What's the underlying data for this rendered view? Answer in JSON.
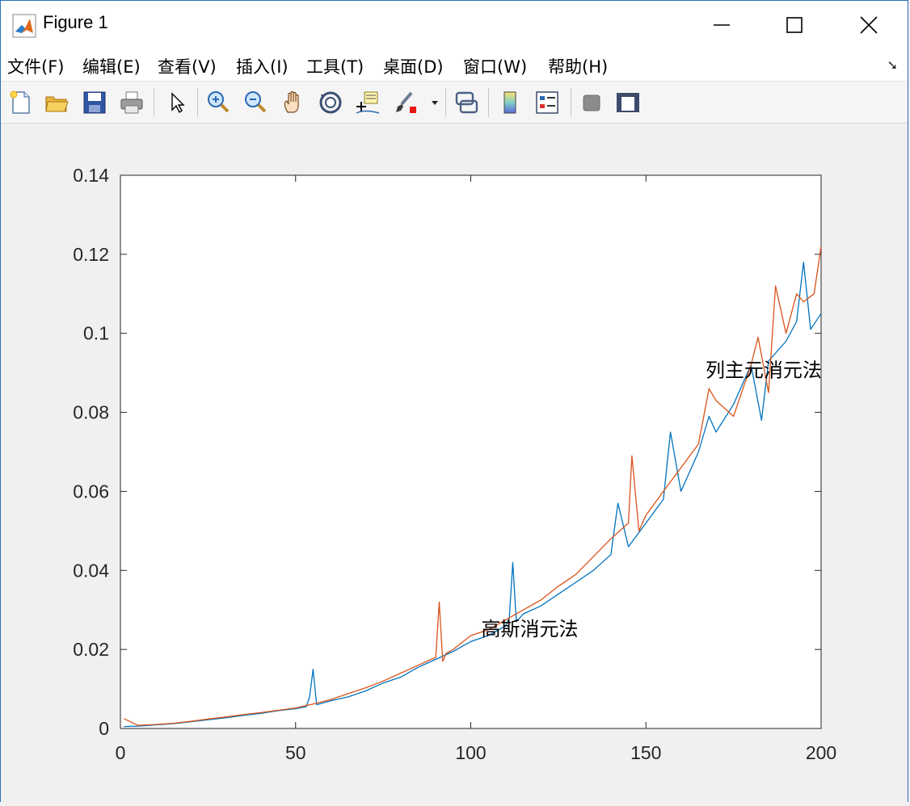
{
  "window": {
    "title": "Figure 1"
  },
  "menu": {
    "items": [
      "文件(F)",
      "编辑(E)",
      "查看(V)",
      "插入(I)",
      "工具(T)",
      "桌面(D)",
      "窗口(W)",
      "帮助(H)"
    ]
  },
  "toolbar": {
    "icons": [
      "new-figure-icon",
      "open-file-icon",
      "save-icon",
      "print-icon",
      "select-arrow-icon",
      "zoom-in-icon",
      "zoom-out-icon",
      "pan-hand-icon",
      "rotate-3d-icon",
      "data-cursor-icon",
      "brush-icon",
      "brush-dropdown-icon",
      "link-plot-icon",
      "colorbar-icon",
      "legend-icon",
      "hide-plot-tools-icon",
      "show-plot-tools-icon"
    ]
  },
  "chart_data": {
    "type": "line",
    "xlim": [
      0,
      200
    ],
    "ylim": [
      0,
      0.14
    ],
    "xticks": [
      0,
      50,
      100,
      150,
      200
    ],
    "yticks": [
      0,
      0.02,
      0.04,
      0.06,
      0.08,
      0.1,
      0.12,
      0.14
    ],
    "xtick_labels": [
      "0",
      "50",
      "100",
      "150",
      "200"
    ],
    "ytick_labels": [
      "0",
      "0.02",
      "0.04",
      "0.06",
      "0.08",
      "0.1",
      "0.12",
      "0.14"
    ],
    "grid": false,
    "series": [
      {
        "color": "#0072BD",
        "x": [
          1,
          5,
          10,
          15,
          20,
          25,
          30,
          35,
          40,
          45,
          50,
          53,
          54,
          55,
          56,
          60,
          65,
          70,
          75,
          80,
          85,
          90,
          95,
          100,
          105,
          110,
          111,
          112,
          113,
          115,
          120,
          125,
          130,
          135,
          140,
          142,
          145,
          150,
          155,
          157,
          160,
          163,
          165,
          168,
          170,
          175,
          180,
          183,
          185,
          190,
          193,
          195,
          197,
          200
        ],
        "y": [
          0.0005,
          0.0006,
          0.0009,
          0.0012,
          0.0017,
          0.0022,
          0.0027,
          0.0033,
          0.0038,
          0.0045,
          0.005,
          0.0055,
          0.008,
          0.015,
          0.006,
          0.007,
          0.008,
          0.0095,
          0.0115,
          0.013,
          0.0155,
          0.0175,
          0.0195,
          0.022,
          0.0235,
          0.026,
          0.028,
          0.042,
          0.027,
          0.029,
          0.031,
          0.034,
          0.037,
          0.04,
          0.044,
          0.057,
          0.046,
          0.052,
          0.058,
          0.075,
          0.06,
          0.066,
          0.07,
          0.079,
          0.075,
          0.082,
          0.092,
          0.078,
          0.093,
          0.098,
          0.103,
          0.118,
          0.101,
          0.105
        ]
      },
      {
        "color": "#D95319",
        "x": [
          1,
          5,
          10,
          15,
          20,
          25,
          30,
          35,
          40,
          45,
          50,
          55,
          60,
          65,
          70,
          75,
          80,
          85,
          90,
          91,
          92,
          93,
          95,
          100,
          105,
          110,
          115,
          120,
          125,
          130,
          135,
          140,
          145,
          146,
          148,
          150,
          155,
          160,
          165,
          168,
          170,
          175,
          180,
          182,
          185,
          187,
          190,
          193,
          195,
          198,
          200
        ],
        "y": [
          0.0025,
          0.0008,
          0.001,
          0.0013,
          0.0018,
          0.0024,
          0.0029,
          0.0035,
          0.004,
          0.0046,
          0.0052,
          0.0062,
          0.0073,
          0.0088,
          0.0103,
          0.012,
          0.014,
          0.016,
          0.018,
          0.032,
          0.017,
          0.019,
          0.02,
          0.0235,
          0.025,
          0.0275,
          0.03,
          0.0325,
          0.036,
          0.039,
          0.0435,
          0.048,
          0.052,
          0.069,
          0.05,
          0.054,
          0.06,
          0.066,
          0.072,
          0.086,
          0.083,
          0.079,
          0.092,
          0.099,
          0.085,
          0.112,
          0.1,
          0.11,
          0.108,
          0.11,
          0.122
        ]
      }
    ],
    "annotations": [
      {
        "text": "列主元消元法",
        "x": 167,
        "y": 0.089
      },
      {
        "text": "高斯消元法",
        "x": 103,
        "y": 0.0235
      }
    ]
  }
}
